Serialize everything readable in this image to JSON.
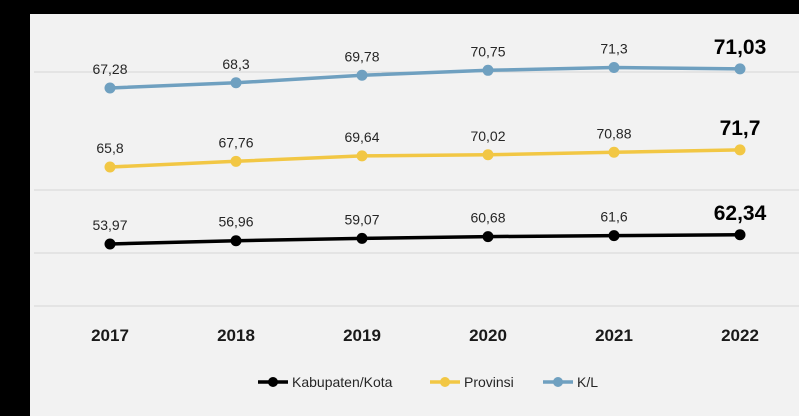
{
  "chart_data": {
    "type": "line",
    "categories": [
      "2017",
      "2018",
      "2019",
      "2020",
      "2021",
      "2022"
    ],
    "series": [
      {
        "name": "Kabupaten/Kota",
        "color": "#000000",
        "values": [
          53.97,
          56.96,
          59.07,
          60.68,
          61.6,
          62.34
        ],
        "labels": [
          "53,97",
          "56,96",
          "59,07",
          "60,68",
          "61,6",
          "62,34"
        ]
      },
      {
        "name": "Provinsi",
        "color": "#f2c744",
        "values": [
          65.8,
          67.76,
          69.64,
          70.02,
          70.88,
          71.7
        ],
        "labels": [
          "65,8",
          "67,76",
          "69,64",
          "70,02",
          "70,88",
          "71,7"
        ]
      },
      {
        "name": "K/L",
        "color": "#6fa0c0",
        "values": [
          67.28,
          68.3,
          69.78,
          70.75,
          71.3,
          71.03
        ],
        "labels": [
          "67,28",
          "68,3",
          "69,78",
          "70,75",
          "71,3",
          "71,03"
        ]
      }
    ],
    "grid": true,
    "legend_position": "bottom",
    "title": "",
    "xlabel": "",
    "ylabel": ""
  }
}
